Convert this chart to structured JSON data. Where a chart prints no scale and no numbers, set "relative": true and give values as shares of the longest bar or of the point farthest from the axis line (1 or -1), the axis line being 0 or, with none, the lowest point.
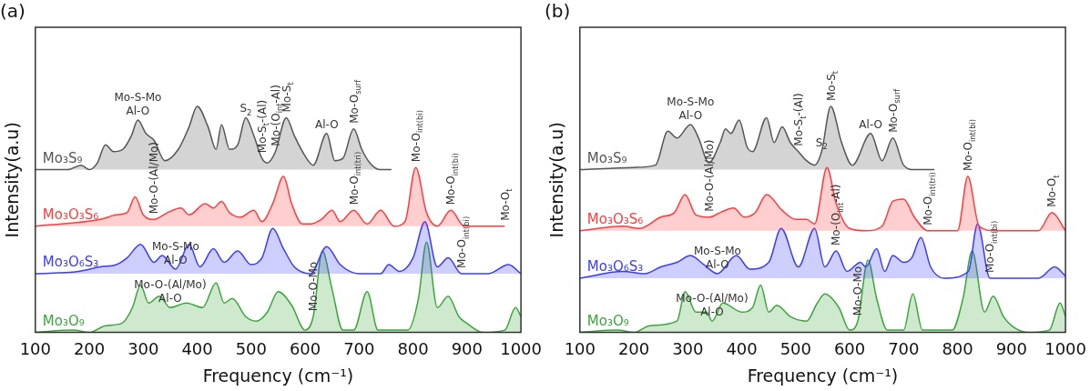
{
  "chart_data": [
    {
      "type": "area",
      "title": "(a)",
      "xlabel": "Frequency (cm⁻¹)",
      "ylabel": "Intensity(a.u)",
      "relative": true,
      "legend": false,
      "xlim": [
        100,
        1000
      ],
      "xticks": [
        100,
        200,
        300,
        400,
        500,
        600,
        700,
        800,
        900,
        1000
      ],
      "series": [
        {
          "name": "Mo₃S₉",
          "color": "#555555",
          "x": [
            100,
            160,
            185,
            200,
            215,
            230,
            245,
            262,
            278,
            290,
            305,
            320,
            340,
            365,
            385,
            400,
            420,
            435,
            445,
            460,
            475,
            490,
            505,
            520,
            530,
            545,
            565,
            580,
            600,
            615,
            640,
            655,
            670,
            690,
            705,
            720,
            740,
            760
          ],
          "values": [
            0.72,
            0.72,
            0.74,
            0.72,
            0.75,
            0.83,
            0.8,
            0.81,
            0.87,
            0.94,
            0.88,
            0.85,
            0.76,
            0.81,
            0.91,
            1.0,
            0.91,
            0.81,
            0.92,
            0.81,
            0.83,
            0.95,
            0.87,
            0.77,
            0.75,
            0.8,
            0.95,
            0.87,
            0.78,
            0.74,
            0.88,
            0.76,
            0.77,
            0.9,
            0.81,
            0.75,
            0.72,
            0.72
          ]
        },
        {
          "name": "Mo₃O₃S₆",
          "color": "#ff3b3b",
          "x": [
            100,
            220,
            250,
            270,
            285,
            300,
            320,
            345,
            370,
            385,
            415,
            430,
            445,
            460,
            480,
            505,
            520,
            540,
            560,
            575,
            595,
            610,
            630,
            650,
            665,
            690,
            715,
            740,
            765,
            785,
            805,
            825,
            845,
            870,
            895,
            970
          ],
          "values": [
            0.47,
            0.5,
            0.52,
            0.53,
            0.6,
            0.52,
            0.5,
            0.53,
            0.55,
            0.52,
            0.57,
            0.55,
            0.58,
            0.53,
            0.51,
            0.54,
            0.49,
            0.57,
            0.69,
            0.57,
            0.48,
            0.48,
            0.5,
            0.54,
            0.49,
            0.54,
            0.48,
            0.54,
            0.47,
            0.49,
            0.73,
            0.53,
            0.47,
            0.54,
            0.47,
            0.47
          ]
        },
        {
          "name": "Mo₃O₆S₃",
          "color": "#3b3bff",
          "x": [
            100,
            180,
            220,
            250,
            270,
            295,
            320,
            335,
            360,
            385,
            405,
            430,
            450,
            475,
            500,
            520,
            540,
            560,
            580,
            610,
            640,
            665,
            700,
            740,
            755,
            775,
            800,
            822,
            845,
            865,
            890,
            940,
            977,
            1000
          ],
          "values": [
            0.26,
            0.27,
            0.29,
            0.3,
            0.33,
            0.39,
            0.31,
            0.34,
            0.28,
            0.39,
            0.29,
            0.37,
            0.31,
            0.36,
            0.3,
            0.33,
            0.46,
            0.37,
            0.29,
            0.26,
            0.38,
            0.3,
            0.26,
            0.26,
            0.3,
            0.27,
            0.33,
            0.49,
            0.29,
            0.33,
            0.26,
            0.26,
            0.3,
            0.26
          ]
        },
        {
          "name": "Mo₃O₉",
          "color": "#3aa63a",
          "x": [
            100,
            170,
            200,
            230,
            260,
            280,
            295,
            310,
            330,
            350,
            380,
            410,
            435,
            450,
            465,
            490,
            510,
            530,
            550,
            575,
            600,
            615,
            632,
            650,
            670,
            690,
            715,
            735,
            790,
            810,
            825,
            845,
            865,
            885,
            900,
            930,
            970,
            990,
            1000
          ],
          "values": [
            0,
            0.01,
            0,
            0.03,
            0.04,
            0.11,
            0.21,
            0.13,
            0.16,
            0.11,
            0.13,
            0.11,
            0.22,
            0.13,
            0.15,
            0.07,
            0.05,
            0.09,
            0.18,
            0.12,
            0.01,
            0.07,
            0.36,
            0.19,
            0.01,
            0.01,
            0.18,
            0.01,
            0.01,
            0.15,
            0.4,
            0.11,
            0.16,
            0.07,
            0.04,
            0,
            0.01,
            0.11,
            0.07
          ]
        }
      ],
      "annotations": [
        {
          "text": "Mo-S-Mo\nAl-O",
          "x": 290,
          "y": 0.94
        },
        {
          "text": "S$_{2}$",
          "x": 490,
          "y": 0.95
        },
        {
          "text": "Mo-S$_{t}$-(Al)",
          "x": 520,
          "y": 0.77
        },
        {
          "text": "Mo-(O$_{int}$-Al)",
          "x": 545,
          "y": 0.8
        },
        {
          "text": "Mo-S$_{t}$",
          "x": 565,
          "y": 0.95
        },
        {
          "text": "Al-O",
          "x": 640,
          "y": 0.88
        },
        {
          "text": "Mo-O$_{surf}$",
          "x": 690,
          "y": 0.9
        },
        {
          "text": "Mo-O$_{int(bi)}$",
          "x": 805,
          "y": 0.73
        },
        {
          "text": "Mo-O$_{int(bi)}$",
          "x": 870,
          "y": 0.54
        },
        {
          "text": "Mo-O$_{int(tri)}$",
          "x": 690,
          "y": 0.54
        },
        {
          "text": "Mo-O-Mo",
          "x": 615,
          "y": 0.07
        },
        {
          "text": "Mo-O$_{int(bi)}$",
          "x": 890,
          "y": 0.26
        },
        {
          "text": "Mo-O$_{t}$",
          "x": 970,
          "y": 0.47
        },
        {
          "text": "Mo-O-(Al/Mo)",
          "x": 320,
          "y": 0.5
        },
        {
          "text": "Mo-S-Mo\nAl-O",
          "x": 360,
          "y": 0.28
        },
        {
          "text": "Mo-O-(Al/Mo)\nAl-O",
          "x": 350,
          "y": 0.11
        }
      ]
    },
    {
      "type": "area",
      "title": "(b)",
      "xlabel": "Frequency (cm⁻¹)",
      "ylabel": "Intensity(a.u)",
      "relative": true,
      "legend": false,
      "xlim": [
        100,
        1000
      ],
      "xticks": [
        100,
        200,
        300,
        400,
        500,
        600,
        700,
        800,
        900,
        1000
      ],
      "series": [
        {
          "name": "Mo₃S₉",
          "color": "#555555",
          "x": [
            100,
            200,
            240,
            263,
            280,
            305,
            320,
            339,
            360,
            370,
            380,
            395,
            410,
            420,
            446,
            460,
            475,
            490,
            505,
            520,
            535,
            548,
            565,
            585,
            605,
            639,
            660,
            680,
            700,
            720,
            757
          ],
          "values": [
            0.72,
            0.73,
            0.74,
            0.89,
            0.86,
            0.92,
            0.86,
            0.75,
            0.84,
            0.9,
            0.88,
            0.94,
            0.82,
            0.8,
            0.95,
            0.84,
            0.91,
            0.84,
            0.8,
            0.76,
            0.74,
            0.8,
            1.0,
            0.84,
            0.74,
            0.88,
            0.76,
            0.86,
            0.74,
            0.72,
            0.72
          ]
        },
        {
          "name": "Mo₃O₃S₆",
          "color": "#ff3b3b",
          "x": [
            100,
            180,
            210,
            250,
            275,
            295,
            315,
            340,
            360,
            385,
            405,
            425,
            446,
            475,
            500,
            520,
            535,
            558,
            575,
            600,
            630,
            660,
            680,
            700,
            720,
            745,
            800,
            819,
            840,
            870,
            950,
            975,
            1000
          ],
          "values": [
            0.45,
            0.47,
            0.46,
            0.51,
            0.53,
            0.61,
            0.52,
            0.51,
            0.53,
            0.55,
            0.51,
            0.53,
            0.61,
            0.54,
            0.5,
            0.5,
            0.48,
            0.73,
            0.57,
            0.46,
            0.45,
            0.47,
            0.58,
            0.59,
            0.51,
            0.45,
            0.45,
            0.69,
            0.47,
            0.45,
            0.45,
            0.53,
            0.45
          ]
        },
        {
          "name": "Mo₃O₆S₃",
          "color": "#3b3bff",
          "x": [
            100,
            180,
            220,
            250,
            280,
            305,
            330,
            355,
            390,
            415,
            450,
            473,
            505,
            535,
            554,
            575,
            595,
            620,
            630,
            650,
            665,
            680,
            700,
            715,
            732,
            750,
            775,
            820,
            837,
            860,
            950,
            980,
            1000
          ],
          "values": [
            0.24,
            0.27,
            0.26,
            0.29,
            0.31,
            0.34,
            0.3,
            0.26,
            0.34,
            0.28,
            0.31,
            0.46,
            0.29,
            0.46,
            0.29,
            0.36,
            0.27,
            0.31,
            0.29,
            0.37,
            0.27,
            0.34,
            0.31,
            0.33,
            0.42,
            0.29,
            0.24,
            0.27,
            0.48,
            0.24,
            0.24,
            0.29,
            0.25
          ]
        },
        {
          "name": "Mo₃O₉",
          "color": "#3aa63a",
          "x": [
            100,
            170,
            200,
            230,
            280,
            295,
            315,
            335,
            345,
            365,
            400,
            420,
            435,
            450,
            465,
            490,
            520,
            540,
            554,
            580,
            600,
            615,
            634,
            650,
            670,
            700,
            717,
            735,
            790,
            810,
            827,
            850,
            866,
            885,
            900,
            930,
            970,
            990,
            1000
          ],
          "values": [
            0,
            0.01,
            0,
            0.03,
            0.05,
            0.18,
            0.09,
            0.09,
            0.05,
            0.13,
            0.09,
            0.11,
            0.21,
            0.09,
            0.12,
            0.07,
            0.05,
            0.13,
            0.17,
            0.11,
            0.01,
            0.05,
            0.32,
            0.15,
            0.01,
            0.01,
            0.17,
            0.01,
            0.01,
            0.15,
            0.36,
            0.09,
            0.16,
            0.07,
            0.03,
            0,
            0.01,
            0.13,
            0.07
          ]
        }
      ],
      "annotations": [
        {
          "text": "Mo-S-Mo\nAl-O",
          "x": 305,
          "y": 0.92
        },
        {
          "text": "Mo-S$_{t}$-(Al)",
          "x": 505,
          "y": 0.8
        },
        {
          "text": "S$_{2}$",
          "x": 548,
          "y": 0.8
        },
        {
          "text": "Mo-S$_{t}$",
          "x": 565,
          "y": 1.0
        },
        {
          "text": "Al-O",
          "x": 639,
          "y": 0.88
        },
        {
          "text": "Mo-O$_{surf}$",
          "x": 680,
          "y": 0.86
        },
        {
          "text": "Mo-O$_{int(tri)}$",
          "x": 745,
          "y": 0.45
        },
        {
          "text": "Mo-O$_{int(bi)}$",
          "x": 819,
          "y": 0.69
        },
        {
          "text": "Mo-O$_{t}$",
          "x": 975,
          "y": 0.53
        },
        {
          "text": "Mo-(O$_{int}$-Al)",
          "x": 575,
          "y": 0.36
        },
        {
          "text": "Mo-O-Mo",
          "x": 615,
          "y": 0.05
        },
        {
          "text": "Mo-O$_{int(bi)}$",
          "x": 860,
          "y": 0.24
        },
        {
          "text": "Mo-O-(Al/Mo)",
          "x": 340,
          "y": 0.51
        },
        {
          "text": "Mo-S-Mo\nAl-O",
          "x": 355,
          "y": 0.26
        },
        {
          "text": "Mo-O-(Al/Mo)\nAl-O",
          "x": 345,
          "y": 0.05
        }
      ]
    }
  ]
}
